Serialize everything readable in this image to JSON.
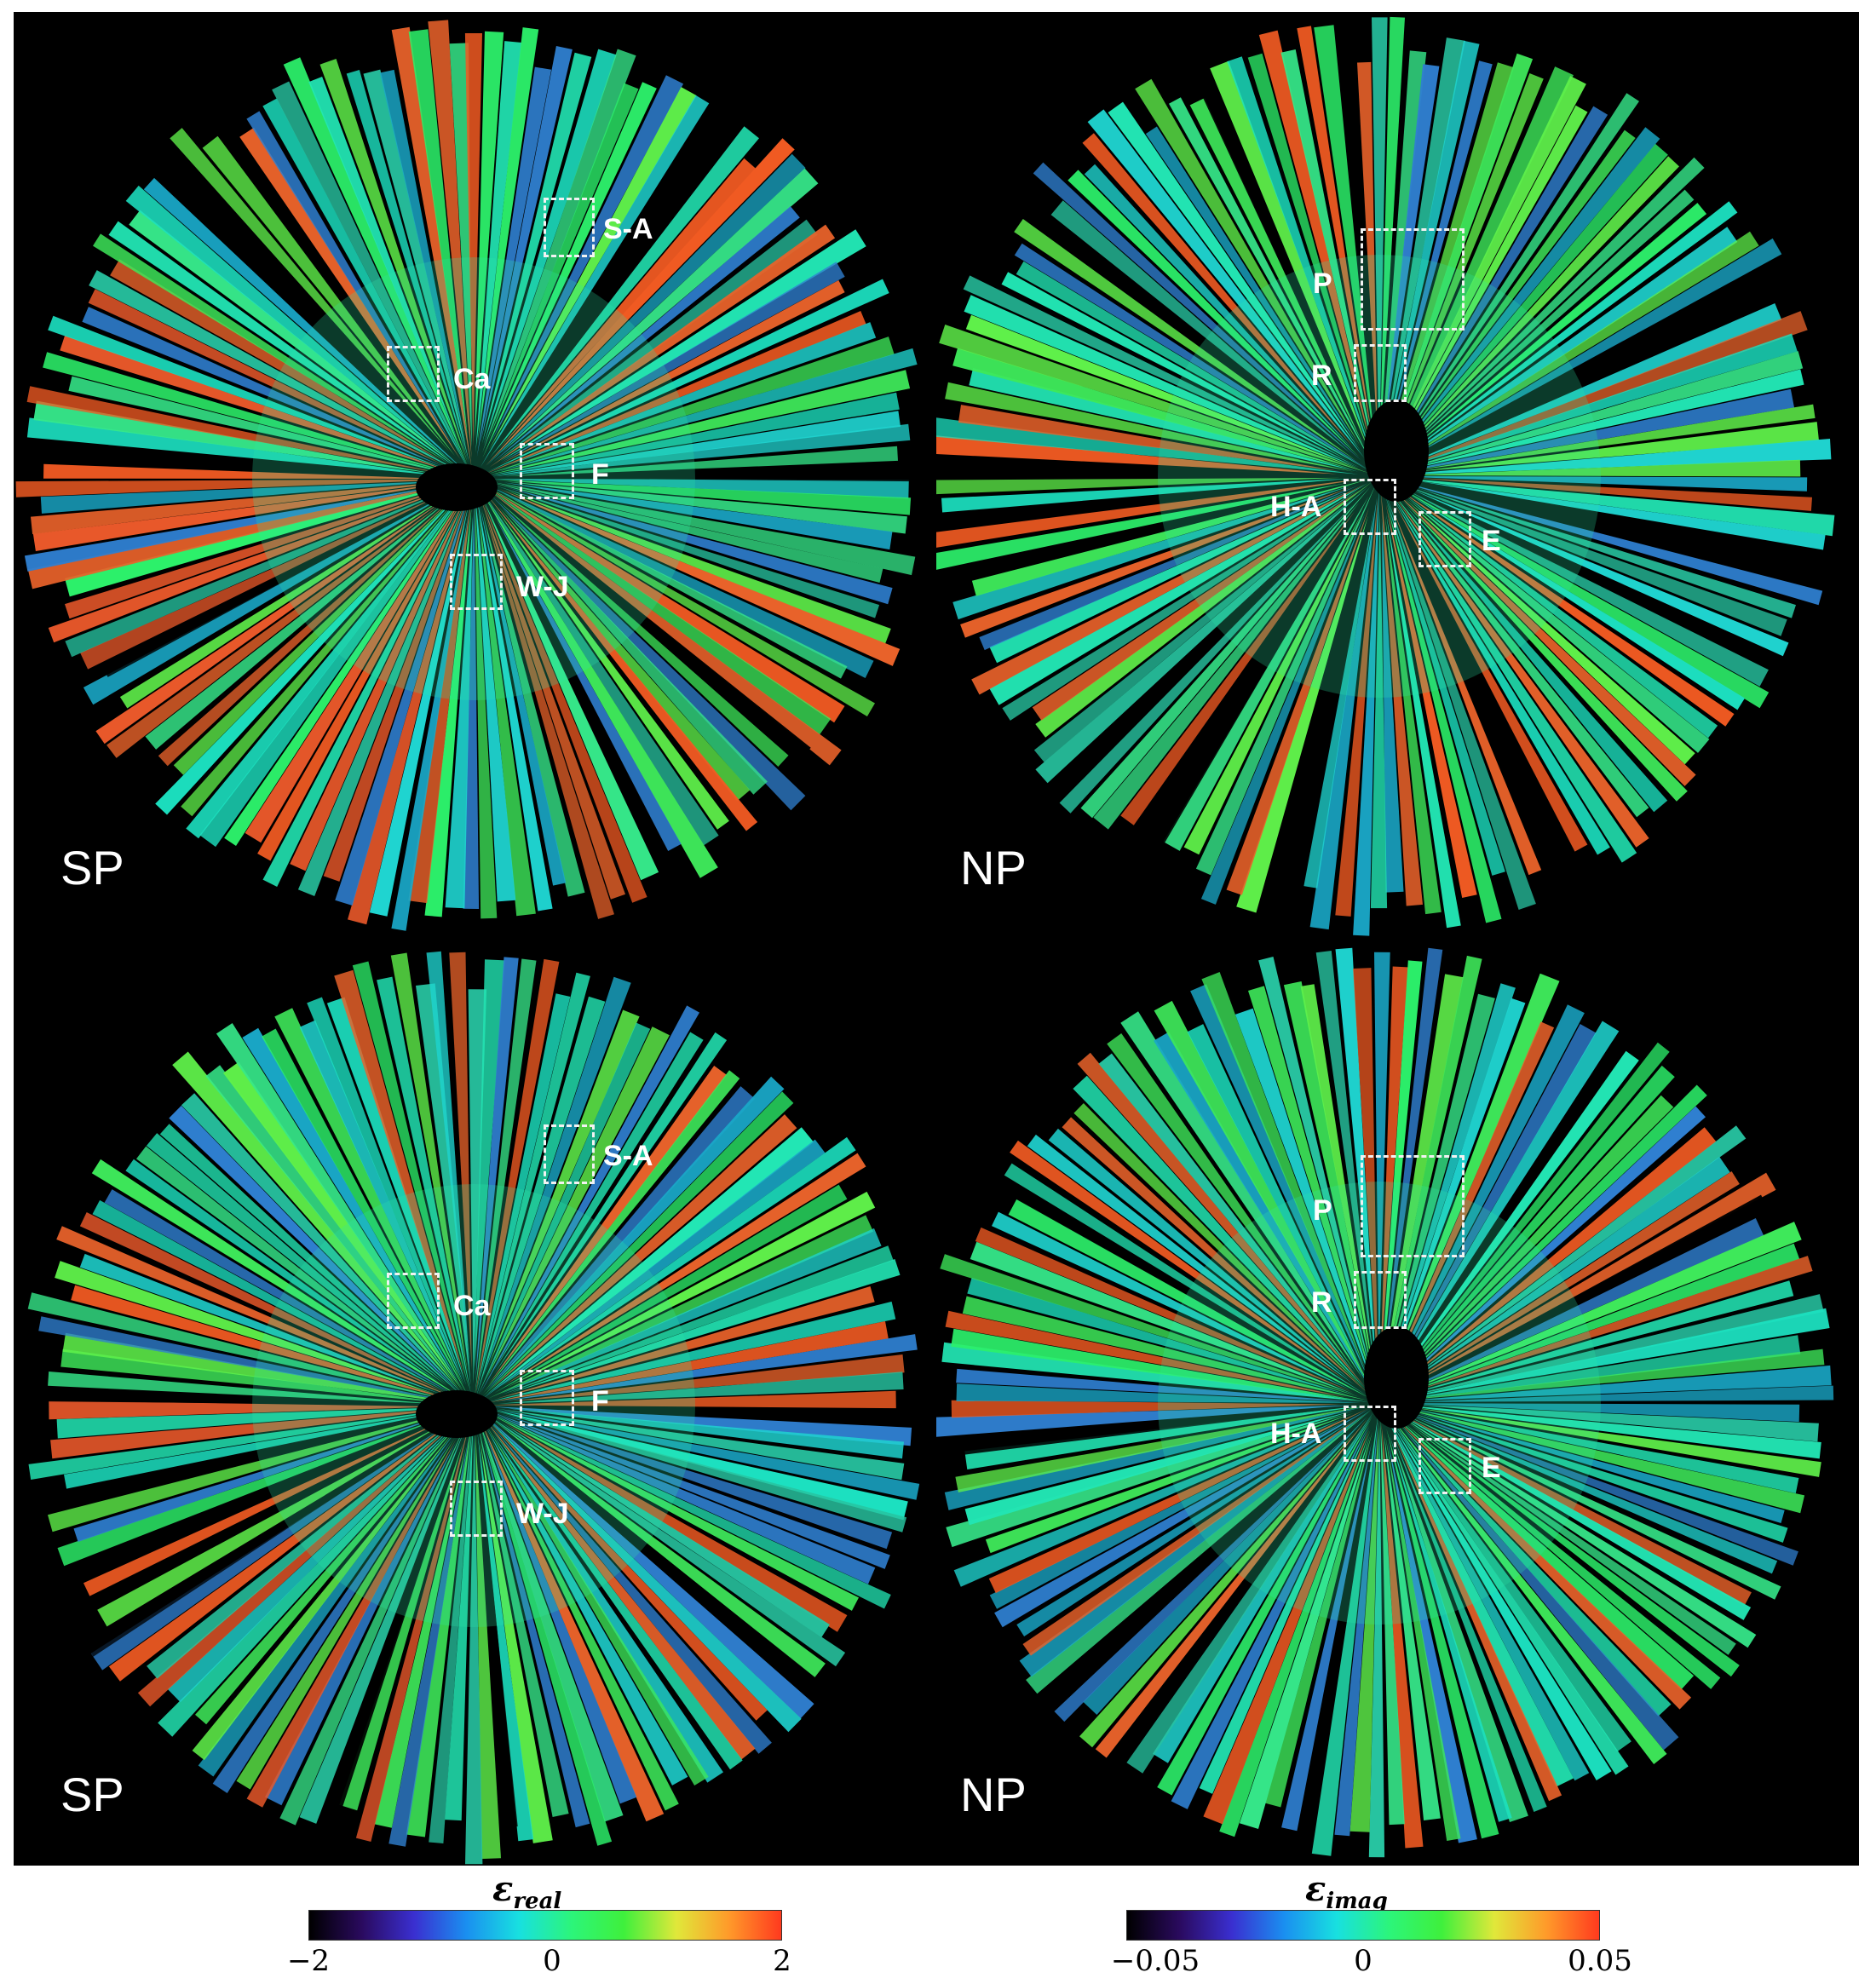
{
  "panels": [
    {
      "pole": "SP",
      "type": "south",
      "rois": [
        "S-A",
        "Ca",
        "F",
        "W-J"
      ]
    },
    {
      "pole": "NP",
      "type": "north",
      "rois": [
        "P",
        "R",
        "H-A",
        "E"
      ]
    },
    {
      "pole": "SP",
      "type": "south",
      "rois": [
        "S-A",
        "Ca",
        "F",
        "W-J"
      ]
    },
    {
      "pole": "NP",
      "type": "north",
      "rois": [
        "P",
        "R",
        "H-A",
        "E"
      ]
    }
  ],
  "colorbars": [
    {
      "symbol": "ε",
      "subscript": "real",
      "min_label": "−2",
      "mid_label": "0",
      "max_label": "2"
    },
    {
      "symbol": "ε",
      "subscript": "imag",
      "min_label": "−0.05",
      "mid_label": "0",
      "max_label": "0.05"
    }
  ],
  "colors": {
    "background": "#000000",
    "colormap": [
      "#000000",
      "#2a0a5e",
      "#3a2fd0",
      "#1a8ff0",
      "#18e0e0",
      "#2cf57a",
      "#3ff03c",
      "#e0e83a",
      "#ff9a2a",
      "#ff3a1e"
    ]
  }
}
